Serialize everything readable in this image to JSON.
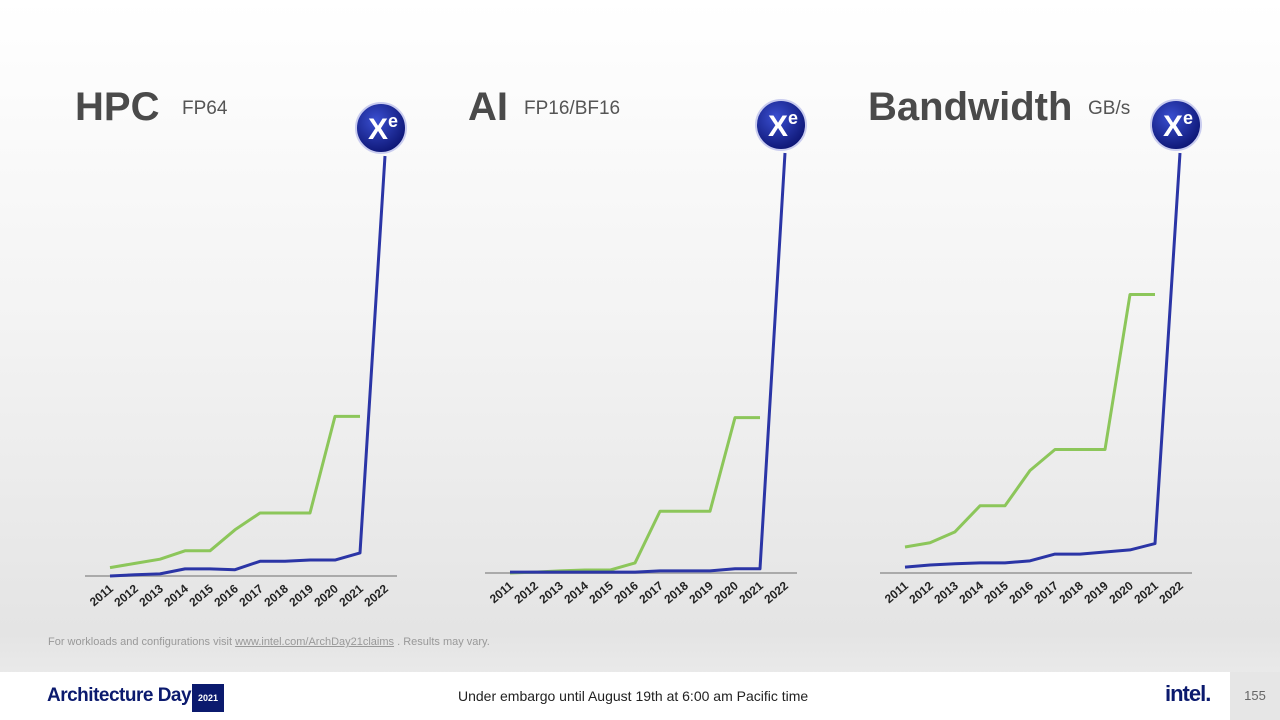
{
  "chart_data": [
    {
      "type": "line",
      "title": "HPC",
      "subtitle": "FP64",
      "logo": {
        "base": "X",
        "sup": "e"
      },
      "categories": [
        "2011",
        "2012",
        "2013",
        "2014",
        "2015",
        "2016",
        "2017",
        "2018",
        "2019",
        "2020",
        "2021",
        "2022"
      ],
      "ylim": [
        0,
        100
      ],
      "series": [
        {
          "color": "#8cc65a",
          "values": [
            2,
            3,
            4,
            6,
            6,
            11,
            15,
            15,
            15,
            38,
            38,
            null
          ]
        },
        {
          "color": "#2b35a6",
          "values": [
            0,
            0.3,
            0.5,
            1.7,
            1.7,
            1.5,
            3.5,
            3.5,
            3.8,
            3.8,
            5.5,
            100
          ]
        }
      ]
    },
    {
      "type": "line",
      "title": "AI",
      "subtitle": "FP16/BF16",
      "logo": {
        "base": "X",
        "sup": "e"
      },
      "categories": [
        "2011",
        "2012",
        "2013",
        "2014",
        "2015",
        "2016",
        "2017",
        "2018",
        "2019",
        "2020",
        "2021",
        "2022"
      ],
      "ylim": [
        0,
        100
      ],
      "series": [
        {
          "color": "#8cc65a",
          "values": [
            0,
            0.2,
            0.5,
            0.7,
            0.7,
            2.4,
            14.7,
            14.7,
            14.7,
            37,
            37,
            null
          ]
        },
        {
          "color": "#2b35a6",
          "values": [
            0.2,
            0.2,
            0.2,
            0.2,
            0.2,
            0.2,
            0.5,
            0.5,
            0.5,
            1,
            1,
            100
          ]
        }
      ]
    },
    {
      "type": "line",
      "title": "Bandwidth",
      "subtitle": "GB/s",
      "logo": {
        "base": "X",
        "sup": "e"
      },
      "categories": [
        "2011",
        "2012",
        "2013",
        "2014",
        "2015",
        "2016",
        "2017",
        "2018",
        "2019",
        "2020",
        "2021",
        "2022"
      ],
      "ylim": [
        0,
        100
      ],
      "series": [
        {
          "color": "#8cc65a",
          "values": [
            6.2,
            7.2,
            9.8,
            16,
            16,
            24.4,
            29.4,
            29.4,
            29.4,
            66.3,
            66.3,
            null
          ]
        },
        {
          "color": "#2b35a6",
          "values": [
            1.4,
            1.9,
            2.2,
            2.4,
            2.4,
            2.9,
            4.5,
            4.5,
            5,
            5.5,
            7,
            100
          ]
        }
      ]
    }
  ],
  "footer": {
    "note": "For workloads and configurations visit",
    "link": "www.intel.com/ArchDay21claims",
    "note_end": ". Results may vary.",
    "brand": "Architecture Day",
    "year": "2021",
    "embargo": "Under embargo until August 19th at 6:00 am Pacific time",
    "company": "intel.",
    "page": "155"
  }
}
